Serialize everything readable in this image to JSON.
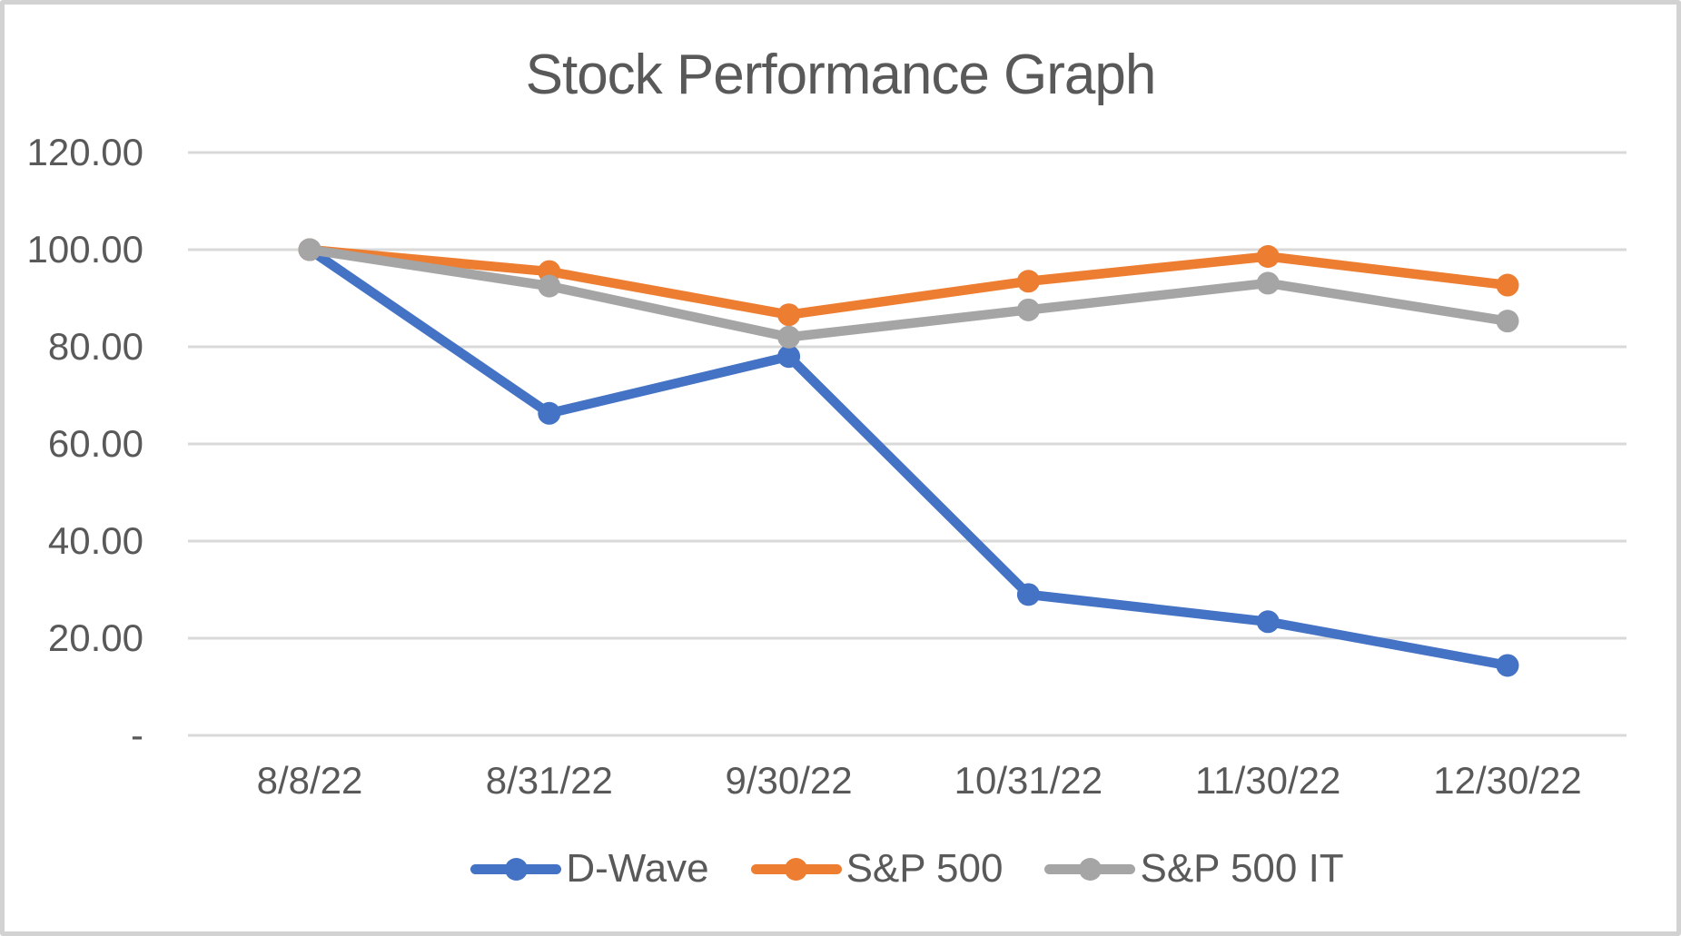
{
  "title": "Stock Performance Graph",
  "chart_data": {
    "type": "line",
    "title": "Stock Performance Graph",
    "categories": [
      "8/8/22",
      "8/31/22",
      "9/30/22",
      "10/31/22",
      "11/30/22",
      "12/30/22"
    ],
    "series": [
      {
        "name": "D-Wave",
        "color": "#4472C4",
        "values": [
          100.0,
          66.3,
          78.0,
          29.0,
          23.4,
          14.4
        ]
      },
      {
        "name": "S&P 500",
        "color": "#ED7D31",
        "values": [
          100.0,
          95.5,
          86.6,
          93.5,
          98.6,
          92.7
        ]
      },
      {
        "name": "S&P 500 IT",
        "color": "#A5A5A5",
        "values": [
          100.0,
          92.5,
          82.0,
          87.6,
          93.1,
          85.3
        ]
      }
    ],
    "y_ticks": [
      {
        "label": "120.00",
        "value": 120
      },
      {
        "label": "100.00",
        "value": 100
      },
      {
        "label": "80.00",
        "value": 80
      },
      {
        "label": "60.00",
        "value": 60
      },
      {
        "label": "40.00",
        "value": 40
      },
      {
        "label": "20.00",
        "value": 20
      },
      {
        "label": "-",
        "value": 0
      }
    ],
    "ylim": [
      0,
      120
    ],
    "grid": true,
    "legend_position": "bottom",
    "marker": "circle",
    "gridline_color": "#D9D9D9",
    "text_color": "#595959",
    "background_color": "#FFFFFF"
  }
}
